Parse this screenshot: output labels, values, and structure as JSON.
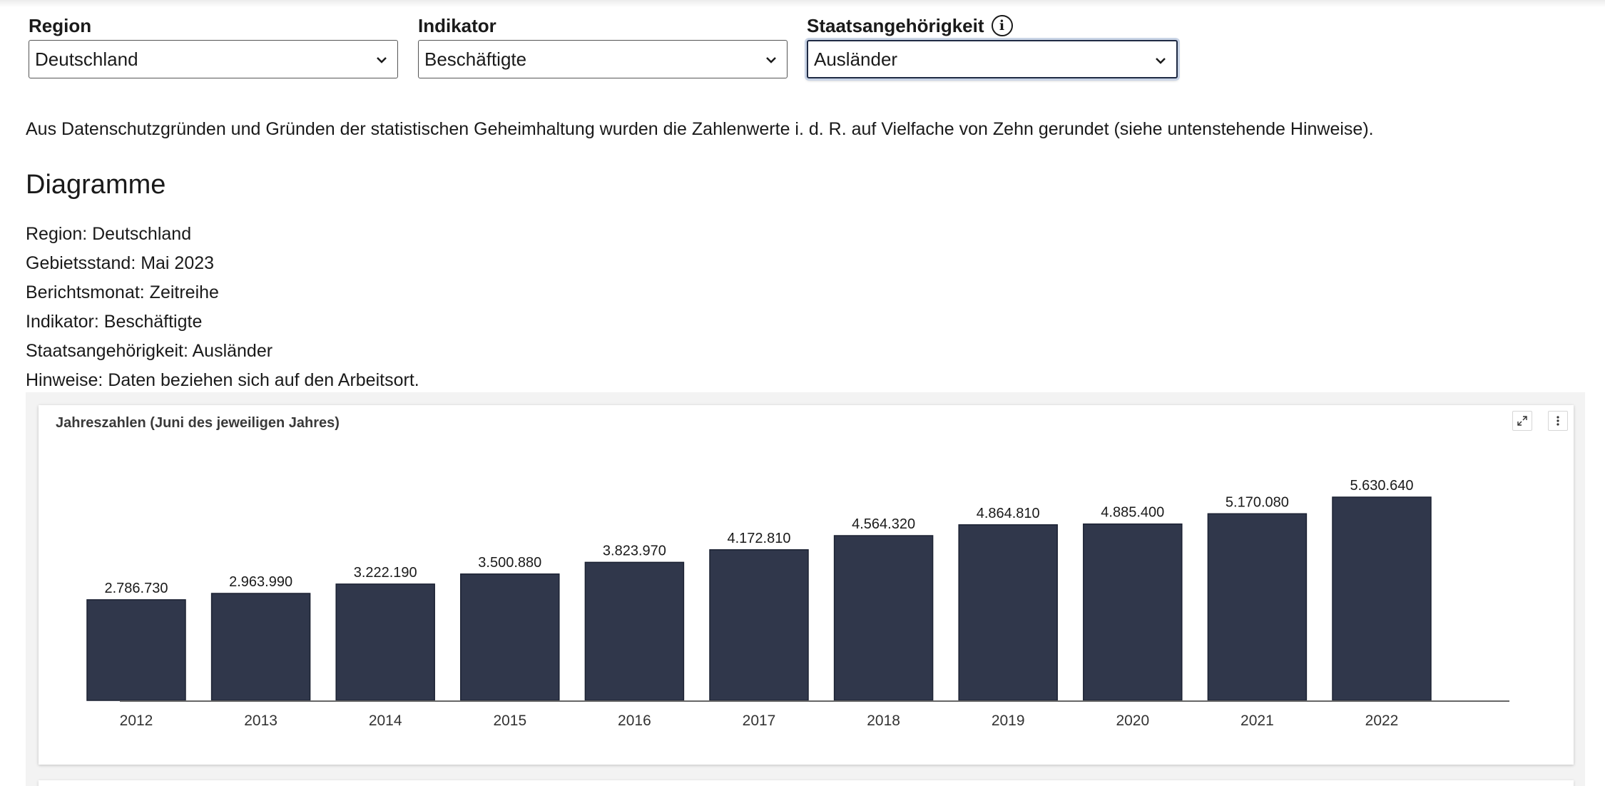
{
  "filters": {
    "region": {
      "label": "Region",
      "value": "Deutschland"
    },
    "indikator": {
      "label": "Indikator",
      "value": "Beschäftigte"
    },
    "staatsangehoerigkeit": {
      "label": "Staatsangehörigkeit",
      "value": "Ausländer",
      "info_icon": "info-icon"
    }
  },
  "notice": "Aus Datenschutzgründen und Gründen der statistischen Geheimhaltung wurden die Zahlenwerte i. d. R. auf Vielfache von Zehn gerundet (siehe untenstehende Hinweise).",
  "heading": "Diagramme",
  "meta": [
    "Region: Deutschland",
    "Gebietsstand: Mai 2023",
    "Berichtsmonat: Zeitreihe",
    "Indikator: Beschäftigte",
    "Staatsangehörigkeit: Ausländer",
    "Hinweise: Daten beziehen sich auf den Arbeitsort."
  ],
  "chart_card": {
    "expand_icon": "expand-icon",
    "menu_icon": "more-vertical-icon"
  },
  "chart_data": {
    "type": "bar",
    "title": "Jahreszahlen (Juni des jeweiligen Jahres)",
    "categories": [
      "2012",
      "2013",
      "2014",
      "2015",
      "2016",
      "2017",
      "2018",
      "2019",
      "2020",
      "2021",
      "2022"
    ],
    "values": [
      2786730,
      2963990,
      3222190,
      3500880,
      3823970,
      4172810,
      4564320,
      4864810,
      4885400,
      5170080,
      5630640
    ],
    "value_labels": [
      "2.786.730",
      "2.963.990",
      "3.222.190",
      "3.500.880",
      "3.823.970",
      "4.172.810",
      "4.564.320",
      "4.864.810",
      "4.885.400",
      "5.170.080",
      "5.630.640"
    ],
    "ylim": [
      0,
      5630640
    ],
    "bar_color": "#30374b",
    "grid": false,
    "legend": "none"
  }
}
